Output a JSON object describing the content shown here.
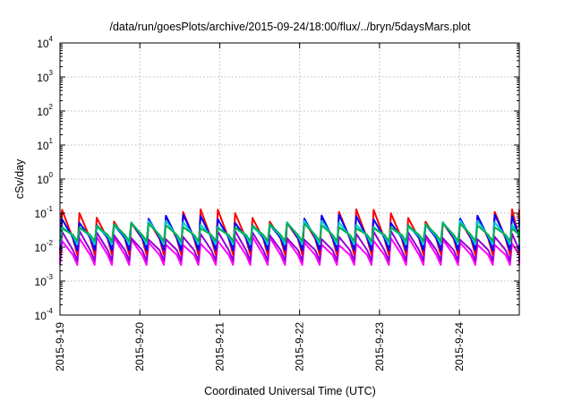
{
  "chart_data": {
    "type": "line",
    "title": "/data/run/goesPlots/archive/2015-09-24/18:00/flux/../bryn/5daysMars.plot",
    "xlabel": "Coordinated Universal Time (UTC)",
    "ylabel": "cSv/day",
    "y_scale": "log",
    "ylim": [
      0.0001,
      10000
    ],
    "y_ticks": [
      {
        "base": "10",
        "exp": "4"
      },
      {
        "base": "10",
        "exp": "3"
      },
      {
        "base": "10",
        "exp": "2"
      },
      {
        "base": "10",
        "exp": "1"
      },
      {
        "base": "10",
        "exp": "0"
      },
      {
        "base": "10",
        "exp": "-1"
      },
      {
        "base": "10",
        "exp": "-2"
      },
      {
        "base": "10",
        "exp": "-3"
      },
      {
        "base": "10",
        "exp": "-4"
      }
    ],
    "x_ticks": [
      "2015-9-19",
      "2015-9-20",
      "2015-9-21",
      "2015-9-22",
      "2015-9-23",
      "2015-9-24"
    ],
    "xlim": [
      "2015-09-19T00:00",
      "2015-09-24T18:00"
    ],
    "grid": true,
    "series": [
      {
        "color": "#ff00ff",
        "envelope_min": 0.003,
        "envelope_max": 0.02
      },
      {
        "color": "#9400d3",
        "envelope_min": 0.004,
        "envelope_max": 0.03
      },
      {
        "color": "#ff0000",
        "envelope_min": 0.006,
        "envelope_max": 0.13
      },
      {
        "color": "#0000ff",
        "envelope_min": 0.008,
        "envelope_max": 0.09
      },
      {
        "color": "#00ced1",
        "envelope_min": 0.012,
        "envelope_max": 0.06
      },
      {
        "color": "#00b050",
        "envelope_min": 0.015,
        "envelope_max": 0.05
      }
    ],
    "oscillation_period_hours": 5.2
  }
}
